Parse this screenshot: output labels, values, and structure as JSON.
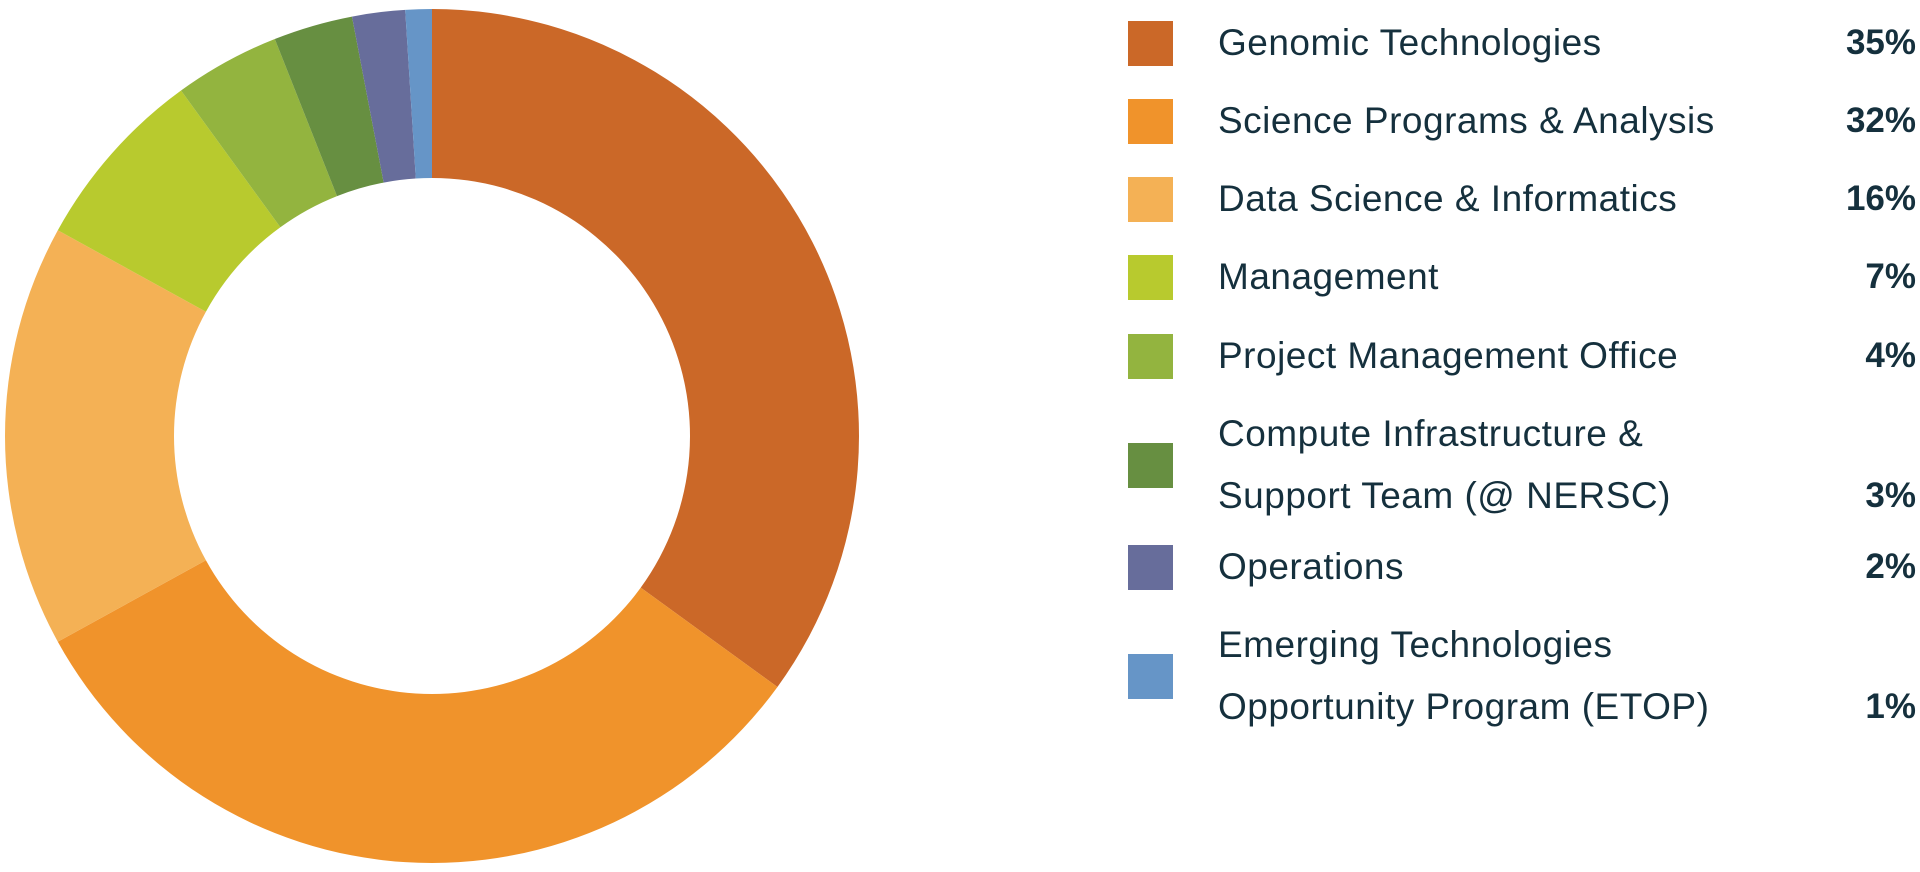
{
  "chart_data": {
    "type": "pie",
    "title": "",
    "donut": true,
    "legend_position": "right",
    "categories": [
      "Genomic Technologies",
      "Science Programs & Analysis",
      "Data Science & Informatics",
      "Management",
      "Project Management Office",
      "Compute Infrastructure & Support Team (@ NERSC)",
      "Operations",
      "Emerging Technologies Opportunity Program (ETOP)"
    ],
    "values": [
      35,
      32,
      16,
      7,
      4,
      3,
      2,
      1
    ],
    "unit": "%",
    "colors": [
      "#cb6828",
      "#f0932b",
      "#f4b155",
      "#b8ca2e",
      "#93b43f",
      "#678f41",
      "#676d9b",
      "#6695c7"
    ]
  },
  "legend": [
    {
      "label": "Genomic Technologies",
      "value_text": "35%",
      "color": "#cb6828"
    },
    {
      "label": "Science Programs & Analysis",
      "value_text": "32%",
      "color": "#f0932b"
    },
    {
      "label": "Data Science & Informatics",
      "value_text": "16%",
      "color": "#f4b155"
    },
    {
      "label": "Management",
      "value_text": "7%",
      "color": "#b8ca2e"
    },
    {
      "label": "Project Management Office",
      "value_text": "4%",
      "color": "#93b43f"
    },
    {
      "label": "Compute Infrastructure &\nSupport Team (@ NERSC)",
      "value_text": "3%",
      "color": "#678f41"
    },
    {
      "label": "Operations",
      "value_text": "2%",
      "color": "#676d9b"
    },
    {
      "label": "Emerging Technologies\nOpportunity Program (ETOP)",
      "value_text": "1%",
      "color": "#6695c7"
    }
  ]
}
